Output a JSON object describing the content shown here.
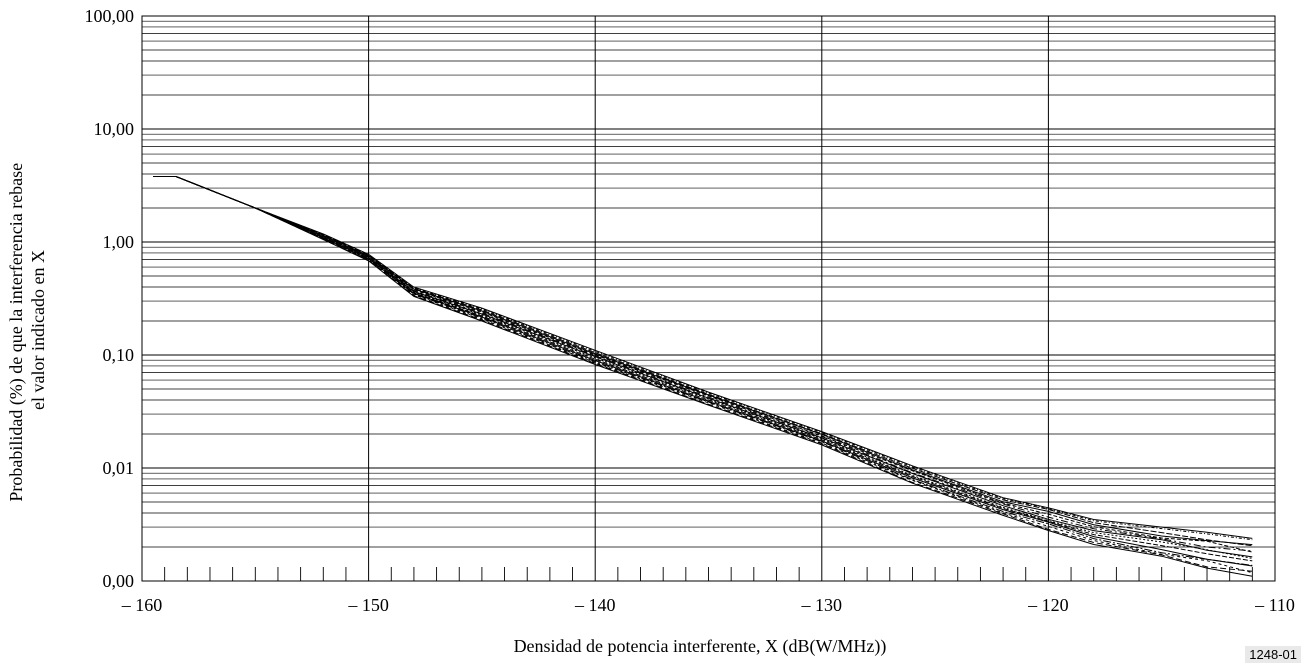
{
  "figure_id": "1248-01",
  "chart_data": {
    "type": "line",
    "title": "",
    "xlabel": "Densidad de potencia interferente, X (dB(W/MHz))",
    "ylabel": [
      "Probabilidad (%) de que la interferencia rebase",
      "el valor indicado en X"
    ],
    "xlim": [
      -160,
      -110
    ],
    "ylim": [
      0.001,
      100
    ],
    "y_scale": "log",
    "grid": true,
    "x_ticks": [
      -160,
      -150,
      -140,
      -130,
      -120,
      -110
    ],
    "x_tick_labels": [
      "– 160",
      "– 150",
      "– 140",
      "– 130",
      "– 120",
      "– 110"
    ],
    "y_ticks": [
      0.001,
      0.01,
      0.1,
      1,
      10,
      100
    ],
    "y_tick_labels": [
      "0,00",
      "0,01",
      "0,10",
      "1,00",
      "10,00",
      "100,00"
    ],
    "legend": "none",
    "envelope_upper": {
      "x": [
        -159.5,
        -158.5,
        -155,
        -152,
        -150,
        -148,
        -145,
        -140,
        -135,
        -130,
        -126,
        -122,
        -120,
        -118,
        -115,
        -113,
        -111
      ],
      "y": [
        3.8,
        3.8,
        2.0,
        1.18,
        0.78,
        0.4,
        0.26,
        0.11,
        0.047,
        0.021,
        0.0105,
        0.0055,
        0.0045,
        0.0035,
        0.003,
        0.0027,
        0.0024
      ]
    },
    "envelope_lower": {
      "x": [
        -159.5,
        -158.5,
        -155,
        -152,
        -150,
        -148,
        -145,
        -140,
        -135,
        -130,
        -126,
        -122,
        -120,
        -118,
        -115,
        -113,
        -111
      ],
      "y": [
        3.8,
        3.8,
        2.0,
        1.05,
        0.68,
        0.33,
        0.2,
        0.082,
        0.036,
        0.016,
        0.0073,
        0.0038,
        0.0028,
        0.0021,
        0.0016,
        0.0013,
        0.0011
      ]
    },
    "series_count": 14
  }
}
